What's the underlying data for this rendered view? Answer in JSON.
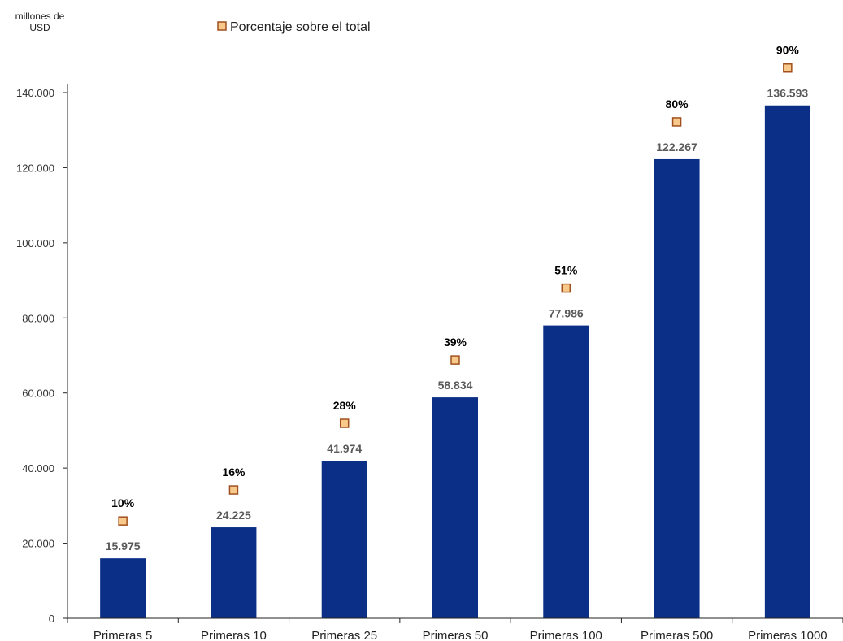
{
  "chart_data": {
    "type": "bar",
    "ylabel_lines": [
      "millones de",
      "USD"
    ],
    "categories": [
      "Primeras 5",
      "Primeras 10",
      "Primeras 25",
      "Primeras 50",
      "Primeras 100",
      "Primeras 500",
      "Primeras 1000"
    ],
    "series": [
      {
        "values": [
          15975,
          24225,
          41974,
          58834,
          77986,
          122267,
          136593
        ],
        "value_labels": [
          "15.975",
          "24.225",
          "41.974",
          "58.834",
          "77.986",
          "122.267",
          "136.593"
        ],
        "color": "#0b2f86"
      },
      {
        "name": "Porcentaje sobre el total",
        "kind": "marker",
        "values": [
          10,
          16,
          28,
          39,
          51,
          80,
          90
        ],
        "value_labels": [
          "10%",
          "16%",
          "28%",
          "39%",
          "51%",
          "80%",
          "90%"
        ],
        "fill": "#f8c98a",
        "stroke": "#a0501e"
      }
    ],
    "yticks": [
      0,
      20000,
      40000,
      60000,
      80000,
      100000,
      120000,
      140000
    ],
    "ytick_labels": [
      "0",
      "20.000",
      "40.000",
      "60.000",
      "80.000",
      "100.000",
      "120.000",
      "140.000"
    ],
    "ylim": [
      0,
      140000
    ],
    "grid": false,
    "legend": "top-center"
  }
}
